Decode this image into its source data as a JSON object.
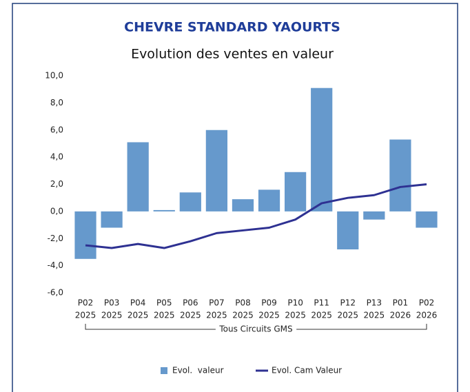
{
  "chart_data": {
    "type": "bar",
    "title": "CHEVRE STANDARD YAOURTS",
    "subtitle": "Evolution des ventes en valeur",
    "categories": [
      [
        "P02",
        "2025"
      ],
      [
        "P03",
        "2025"
      ],
      [
        "P04",
        "2025"
      ],
      [
        "P05",
        "2025"
      ],
      [
        "P06",
        "2025"
      ],
      [
        "P07",
        "2025"
      ],
      [
        "P08",
        "2025"
      ],
      [
        "P09",
        "2025"
      ],
      [
        "P10",
        "2025"
      ],
      [
        "P11",
        "2025"
      ],
      [
        "P12",
        "2025"
      ],
      [
        "P13",
        "2025"
      ],
      [
        "P01",
        "2026"
      ],
      [
        "P02",
        "2026"
      ]
    ],
    "category_group": "Tous Circuits GMS",
    "series": [
      {
        "name": "Evol.  valeur",
        "type": "bar",
        "color": "#6699cc",
        "values": [
          -3.5,
          -1.2,
          5.1,
          0.1,
          1.4,
          6.0,
          0.9,
          1.6,
          2.9,
          9.1,
          -2.8,
          -0.6,
          5.3,
          -1.2
        ]
      },
      {
        "name": "Evol. Cam Valeur",
        "type": "line",
        "color": "#2e3192",
        "values": [
          -2.5,
          -2.7,
          -2.4,
          -2.7,
          -2.2,
          -1.6,
          -1.4,
          -1.2,
          -0.6,
          0.6,
          1.0,
          1.2,
          1.8,
          2.0
        ]
      }
    ],
    "ylim": [
      -6,
      10
    ],
    "yticks": [
      {
        "value": -6,
        "label": "-6,0"
      },
      {
        "value": -4,
        "label": "-4,0"
      },
      {
        "value": -2,
        "label": "-2,0"
      },
      {
        "value": 0,
        "label": "0,0"
      },
      {
        "value": 2,
        "label": "2,0"
      },
      {
        "value": 4,
        "label": "4,0"
      },
      {
        "value": 6,
        "label": "6,0"
      },
      {
        "value": 8,
        "label": "8,0"
      },
      {
        "value": 10,
        "label": "10,0"
      }
    ],
    "grid": false,
    "legend": "bottom"
  }
}
